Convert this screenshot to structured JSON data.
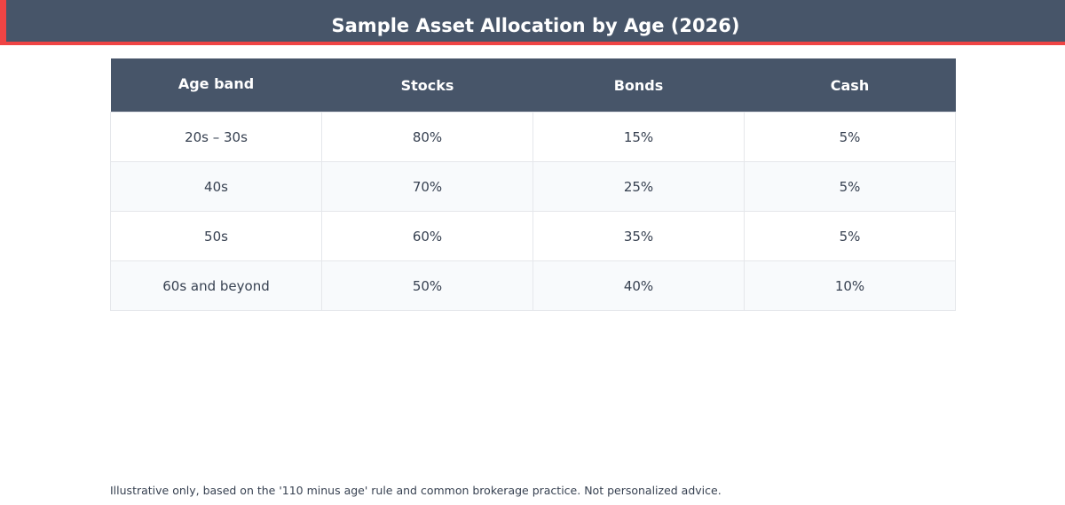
{
  "chart_data": {
    "type": "table",
    "title": "Sample Asset Allocation by Age (2026)",
    "columns": [
      "Age band",
      "Stocks",
      "Bonds",
      "Cash"
    ],
    "rows": [
      [
        "20s – 30s",
        "80%",
        "15%",
        "5%"
      ],
      [
        "40s",
        "70%",
        "25%",
        "5%"
      ],
      [
        "50s",
        "60%",
        "35%",
        "5%"
      ],
      [
        "60s and beyond",
        "50%",
        "40%",
        "10%"
      ]
    ],
    "footnote": "Illustrative only, based on the '110 minus age' rule and common brokerage practice. Not personalized advice."
  },
  "colors": {
    "header_bg": "#475569",
    "accent": "#ef4444",
    "alt_row_bg": "#f8fafc",
    "grid": "#e5e7eb",
    "text": "#374151"
  }
}
